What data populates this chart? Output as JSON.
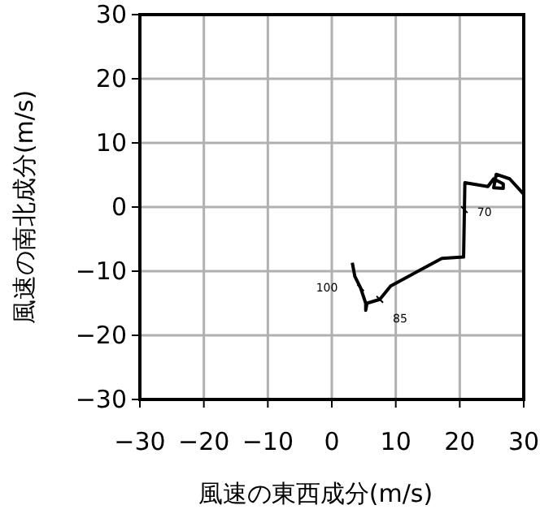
{
  "chart_data": {
    "type": "line",
    "xlabel": "風速の東西成分(m/s)",
    "ylabel": "風速の南北成分(m/s)",
    "xlim": [
      -30,
      30
    ],
    "ylim": [
      -30,
      30
    ],
    "xticks": [
      -30,
      -20,
      -10,
      0,
      10,
      20,
      30
    ],
    "yticks": [
      -30,
      -20,
      -10,
      0,
      10,
      20,
      30
    ],
    "grid": true,
    "line_style": "solid",
    "series": [
      {
        "color": "#000000",
        "x": [
          3.2,
          3.6,
          4.5,
          5.3,
          5.3,
          5.5,
          7.5,
          9.2,
          17.2,
          20.6,
          20.8,
          24.4,
          25.3,
          26.8,
          26.8,
          25.3,
          25.7,
          27.8,
          29.9
        ],
        "values": [
          -8.7,
          -10.8,
          -12.6,
          -15.0,
          -16.1,
          -15.0,
          -14.4,
          -12.3,
          -8.0,
          -7.8,
          3.8,
          3.2,
          4.4,
          3.6,
          2.9,
          3.0,
          5.1,
          4.4,
          2.1
        ]
      }
    ],
    "annotations": [
      {
        "text": "100",
        "x": 4.5,
        "y": -12.6
      },
      {
        "text": "85",
        "x": 7.5,
        "y": -14.4
      },
      {
        "text": "70",
        "x": 20.7,
        "y": -0.4
      }
    ]
  }
}
